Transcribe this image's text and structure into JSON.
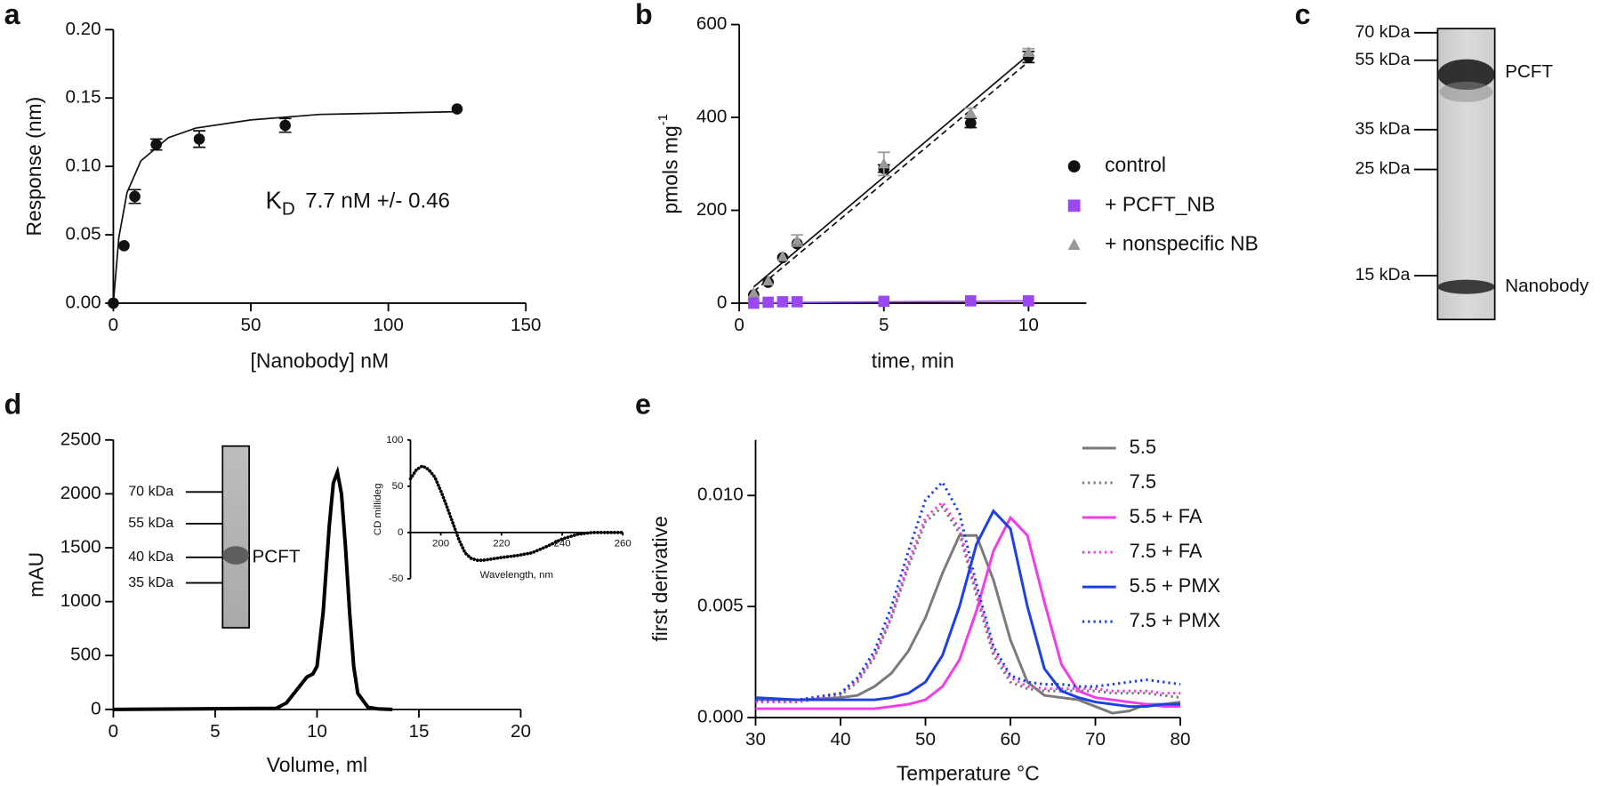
{
  "chart_data": [
    {
      "type": "scatter",
      "panel_label": "a",
      "xlabel": "[Nanobody] nM",
      "ylabel": "Response (nm)",
      "xlim": [
        0,
        150
      ],
      "ylim": [
        0,
        0.2
      ],
      "xticks": [
        0,
        50,
        100,
        150
      ],
      "yticks": [
        {
          "value": 0,
          "label": "0.00"
        },
        {
          "value": 0.05,
          "label": "0.05"
        },
        {
          "value": 0.1,
          "label": "0.10"
        },
        {
          "value": 0.15,
          "label": "0.15"
        },
        {
          "value": 0.2,
          "label": "0.20"
        }
      ],
      "x": [
        0,
        3.9,
        7.8,
        15.6,
        31.25,
        62.5,
        125
      ],
      "values": [
        0,
        0.042,
        0.078,
        0.116,
        0.12,
        0.13,
        0.142
      ],
      "errors": [
        null,
        null,
        0.005,
        0.004,
        0.006,
        0.005,
        null
      ],
      "color": "#111111",
      "marker": "circle",
      "fits": [
        {
          "x": [
            0,
            2,
            5,
            10,
            20,
            30,
            50,
            75,
            100,
            125
          ],
          "values": [
            0,
            0.048,
            0.081,
            0.104,
            0.121,
            0.128,
            0.134,
            0.138,
            0.139,
            0.14
          ],
          "color": "#111111",
          "dash": "solid"
        }
      ],
      "annotation": {
        "symbol": "K",
        "subscript": "D",
        "text": "7.7 nM +/- 0.46"
      }
    },
    {
      "type": "scatter",
      "panel_label": "b",
      "xlabel": "time, min",
      "ylabel": {
        "text": "pmols mg",
        "superscript": "-1"
      },
      "xlim": [
        0,
        12
      ],
      "ylim": [
        0,
        600
      ],
      "xticks": [
        0,
        5,
        10
      ],
      "yticks": [
        0,
        200,
        400,
        600
      ],
      "x": [
        0.5,
        1,
        1.5,
        2,
        5,
        8,
        10
      ],
      "series": [
        {
          "name": "control",
          "color": "#111111",
          "marker": "circle",
          "values": [
            18,
            45,
            98,
            128,
            290,
            388,
            530
          ],
          "errors": [
            null,
            null,
            null,
            null,
            8,
            10,
            12
          ]
        },
        {
          "name": "+ PCFT_NB",
          "color": "#9a48f0",
          "marker": "square",
          "values": [
            0,
            2,
            3,
            3,
            4,
            5,
            5
          ],
          "errors": [
            null,
            null,
            null,
            null,
            null,
            null,
            null
          ]
        },
        {
          "name": "+ nonspecific NB",
          "color": "#999999",
          "marker": "triangle",
          "values": [
            22,
            48,
            100,
            135,
            300,
            410,
            540
          ],
          "errors": [
            null,
            null,
            null,
            12,
            25,
            10,
            8
          ]
        }
      ],
      "fits": [
        {
          "x": [
            0.5,
            10
          ],
          "values": [
            35,
            535
          ],
          "color": "#111111",
          "dash": "solid"
        },
        {
          "x": [
            0.5,
            10
          ],
          "values": [
            25,
            520
          ],
          "color": "#111111",
          "dash": "dashed"
        },
        {
          "x": [
            0.5,
            10
          ],
          "values": [
            1,
            5
          ],
          "color": "#9a48f0",
          "dash": "solid"
        }
      ],
      "legend": "right"
    },
    {
      "type": "gel",
      "panel_label": "c",
      "markers": [
        "70 kDa",
        "55 kDa",
        "35 kDa",
        "25 kDa",
        "15 kDa"
      ],
      "bands": [
        "PCFT",
        "Nanobody"
      ]
    },
    {
      "type": "line",
      "panel_label": "d",
      "xlabel": "Volume, ml",
      "ylabel": "mAU",
      "xlim": [
        0,
        20
      ],
      "ylim": [
        0,
        2500
      ],
      "xticks": [
        0,
        5,
        10,
        15,
        20
      ],
      "yticks": [
        0,
        500,
        1000,
        1500,
        2000,
        2500
      ],
      "x": [
        0,
        8,
        8.5,
        9,
        9.5,
        9.8,
        10,
        10.3,
        10.6,
        10.8,
        11,
        11.2,
        11.4,
        11.6,
        11.8,
        12,
        12.5,
        13,
        13.7
      ],
      "values": [
        0,
        10,
        60,
        180,
        300,
        330,
        400,
        900,
        1700,
        2100,
        2200,
        2000,
        1500,
        900,
        400,
        150,
        20,
        5,
        0
      ],
      "color": "#000000",
      "inset_gel": {
        "markers": [
          "70 kDa",
          "55 kDa",
          "40 kDa",
          "35 kDa"
        ],
        "bands": [
          "PCFT"
        ]
      },
      "inset_cd": {
        "type": "line",
        "xlabel": "Wavelength, nm",
        "ylabel": "CD millideg",
        "xlim": [
          190,
          260
        ],
        "ylim": [
          -50,
          100
        ],
        "xticks": [
          200,
          220,
          240,
          260
        ],
        "yticks": [
          -50,
          0,
          50,
          100
        ],
        "x": [
          190,
          192,
          194,
          196,
          198,
          200,
          202,
          204,
          206,
          208,
          210,
          212,
          214,
          216,
          220,
          225,
          230,
          235,
          240,
          245,
          250,
          255,
          260
        ],
        "values": [
          58,
          68,
          72,
          68,
          60,
          45,
          28,
          10,
          -8,
          -22,
          -28,
          -30,
          -30,
          -29,
          -27,
          -25,
          -22,
          -15,
          -7,
          -2,
          0,
          0,
          0
        ],
        "color": "#000000"
      }
    },
    {
      "type": "line",
      "panel_label": "e",
      "xlabel": "Temperature °C",
      "ylabel": "first derivative",
      "xlim": [
        30,
        80
      ],
      "ylim": [
        0,
        0.0125
      ],
      "xticks": [
        30,
        40,
        50,
        60,
        70,
        80
      ],
      "yticks": [
        {
          "value": 0,
          "label": "0.000"
        },
        {
          "value": 0.005,
          "label": "0.005"
        },
        {
          "value": 0.01,
          "label": "0.010"
        }
      ],
      "x": [
        30,
        35,
        40,
        42,
        44,
        46,
        48,
        50,
        52,
        54,
        56,
        58,
        60,
        62,
        64,
        66,
        68,
        70,
        72,
        74,
        76,
        78,
        80
      ],
      "series": [
        {
          "name": "5.5",
          "color": "#7a7a7a",
          "dash": "solid",
          "values": [
            0.0008,
            0.0008,
            0.0009,
            0.001,
            0.0014,
            0.002,
            0.003,
            0.0045,
            0.0065,
            0.0082,
            0.0082,
            0.0062,
            0.0035,
            0.0016,
            0.001,
            0.0009,
            0.0008,
            0.0005,
            0.0002,
            0.0003,
            0.0006,
            0.0006,
            0.0007
          ]
        },
        {
          "name": "7.5",
          "color": "#7a7a7a",
          "dash": "dotted",
          "values": [
            0.0007,
            0.0007,
            0.001,
            0.0016,
            0.0027,
            0.0045,
            0.0068,
            0.0088,
            0.0095,
            0.0083,
            0.0055,
            0.0028,
            0.0016,
            0.0013,
            0.0012,
            0.0012,
            0.0012,
            0.0012,
            0.0011,
            0.0011,
            0.0011,
            0.001,
            0.0009
          ]
        },
        {
          "name": "5.5 + FA",
          "color": "#f23ce8",
          "dash": "solid",
          "values": [
            0.0004,
            0.0004,
            0.0004,
            0.0004,
            0.0004,
            0.0005,
            0.0006,
            0.0008,
            0.0014,
            0.0026,
            0.0048,
            0.0075,
            0.009,
            0.0082,
            0.0052,
            0.0024,
            0.0012,
            0.0009,
            0.0008,
            0.0007,
            0.0006,
            0.0005,
            0.0005
          ]
        },
        {
          "name": "7.5 + FA",
          "color": "#f23ce8",
          "dash": "dotted",
          "values": [
            0.0007,
            0.0007,
            0.0011,
            0.0017,
            0.0028,
            0.0046,
            0.007,
            0.009,
            0.0097,
            0.0085,
            0.0057,
            0.003,
            0.0018,
            0.0014,
            0.0013,
            0.0013,
            0.0013,
            0.0013,
            0.0012,
            0.0012,
            0.0012,
            0.0011,
            0.0011
          ]
        },
        {
          "name": "5.5 + PMX",
          "color": "#1c3fe6",
          "dash": "solid",
          "values": [
            0.0009,
            0.0008,
            0.0008,
            0.0008,
            0.0008,
            0.0009,
            0.0011,
            0.0016,
            0.0028,
            0.005,
            0.0078,
            0.0093,
            0.0085,
            0.005,
            0.0022,
            0.0012,
            0.0009,
            0.0007,
            0.0006,
            0.0005,
            0.0005,
            0.0006,
            0.0006
          ]
        },
        {
          "name": "7.5 + PMX",
          "color": "#1c3fe6",
          "dash": "dotted",
          "values": [
            0.0008,
            0.0008,
            0.0011,
            0.0018,
            0.003,
            0.005,
            0.0075,
            0.0098,
            0.0106,
            0.0092,
            0.006,
            0.0032,
            0.0019,
            0.0016,
            0.0015,
            0.0015,
            0.0014,
            0.0014,
            0.0015,
            0.0016,
            0.0017,
            0.0016,
            0.0015
          ]
        }
      ],
      "legend": "upper right"
    }
  ]
}
